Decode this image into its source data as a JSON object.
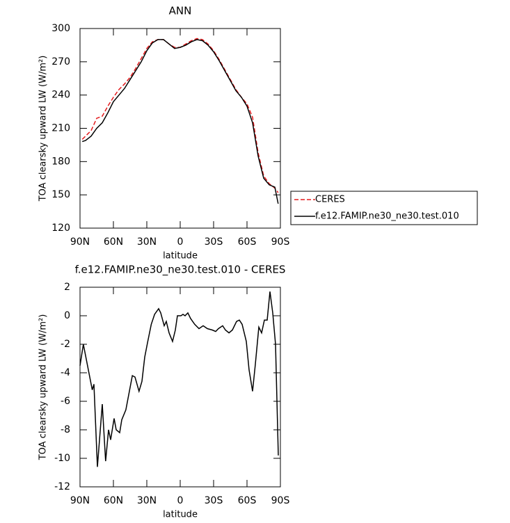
{
  "chart_data": [
    {
      "type": "line",
      "title": "ANN",
      "xlabel": "latitude",
      "ylabel": "TOA clearsky upward LW (W/m²)",
      "x": [
        88,
        85,
        80,
        75,
        70,
        65,
        60,
        55,
        50,
        45,
        40,
        35,
        30,
        25,
        20,
        15,
        10,
        5,
        0,
        -5,
        -10,
        -15,
        -20,
        -25,
        -30,
        -35,
        -40,
        -45,
        -50,
        -55,
        -60,
        -65,
        -70,
        -75,
        -80,
        -85,
        -88
      ],
      "series": [
        {
          "name": "CERES",
          "color": "#e41a1c",
          "dashed": true,
          "values": [
            200,
            203,
            208,
            219,
            221,
            230,
            238,
            245,
            250,
            256,
            264,
            273,
            282,
            288,
            290,
            290,
            286,
            283,
            283,
            286,
            289,
            291,
            290,
            286,
            280,
            272,
            263,
            254,
            245,
            238,
            232,
            220,
            188,
            167,
            160,
            156,
            152
          ]
        },
        {
          "name": "f.e12.FAMIP.ne30_ne30.test.010",
          "color": "#000000",
          "dashed": false,
          "values": [
            198,
            199,
            203,
            210,
            215,
            224,
            234,
            240,
            246,
            254,
            262,
            270,
            280,
            287,
            290,
            290,
            286,
            282,
            283,
            285,
            288,
            290,
            289,
            285,
            279,
            271,
            262,
            253,
            244,
            238,
            230,
            215,
            185,
            165,
            159,
            157,
            142
          ]
        }
      ],
      "xlim": [
        90,
        -90
      ],
      "xticks": [
        {
          "value": 90,
          "label": "90N"
        },
        {
          "value": 60,
          "label": "60N"
        },
        {
          "value": 30,
          "label": "30N"
        },
        0,
        {
          "value": -30,
          "label": "30S"
        },
        {
          "value": -60,
          "label": "60S"
        },
        {
          "value": -90,
          "label": "90S"
        }
      ],
      "ylim": [
        120,
        300
      ],
      "yticks": [
        120,
        150,
        180,
        210,
        240,
        270,
        300
      ],
      "legend": "right"
    },
    {
      "type": "line",
      "title": "f.e12.FAMIP.ne30_ne30.test.010 - CERES",
      "xlabel": "latitude",
      "ylabel": "TOA clearsky upward LW (W/m²)",
      "x": [
        90,
        87,
        82,
        79,
        77.5,
        74.4,
        70,
        67,
        64.4,
        62.5,
        59.4,
        57.5,
        54.4,
        52.5,
        48.8,
        43,
        40.6,
        37,
        34.4,
        31.9,
        29.4,
        26,
        23,
        19.4,
        17.5,
        14.4,
        12.5,
        10,
        6.9,
        4.4,
        2.5,
        -0.6,
        -2.5,
        -4.4,
        -6.9,
        -9.4,
        -13,
        -16.9,
        -20.6,
        -24.4,
        -28.8,
        -31.9,
        -34.4,
        -38.1,
        -40.6,
        -43.8,
        -46.9,
        -50.6,
        -53.1,
        -55.6,
        -59.4,
        -61.9,
        -65,
        -67.5,
        -70.6,
        -73.1,
        -75.6,
        -78.1,
        -80.6,
        -83.1,
        -85.6,
        -88.1
      ],
      "values": [
        -3.5,
        -2.0,
        -4.0,
        -5.2,
        -4.8,
        -10.6,
        -6.2,
        -10.2,
        -8.0,
        -8.7,
        -7.2,
        -8.0,
        -8.2,
        -7.3,
        -6.6,
        -4.2,
        -4.3,
        -5.3,
        -4.6,
        -2.9,
        -1.9,
        -0.6,
        0.1,
        0.5,
        0.2,
        -0.7,
        -0.4,
        -1.2,
        -1.8,
        -1.0,
        0.0,
        0.0,
        0.1,
        0.0,
        0.2,
        -0.2,
        -0.6,
        -0.9,
        -0.7,
        -0.9,
        -1.0,
        -1.1,
        -0.9,
        -0.7,
        -1.0,
        -1.2,
        -1.0,
        -0.4,
        -0.3,
        -0.6,
        -1.8,
        -3.8,
        -5.3,
        -3.4,
        -0.8,
        -1.2,
        -0.3,
        -0.3,
        1.7,
        0.2,
        -2.0,
        -9.8
      ],
      "color": "#000000",
      "xlim": [
        90,
        -90
      ],
      "xticks": [
        {
          "value": 90,
          "label": "90N"
        },
        {
          "value": 60,
          "label": "60N"
        },
        {
          "value": 30,
          "label": "30N"
        },
        0,
        {
          "value": -30,
          "label": "30S"
        },
        {
          "value": -60,
          "label": "60S"
        },
        {
          "value": -90,
          "label": "90S"
        }
      ],
      "ylim": [
        -12,
        2
      ],
      "yticks": [
        -12,
        -10,
        -8,
        -6,
        -4,
        -2,
        0,
        2
      ]
    }
  ]
}
